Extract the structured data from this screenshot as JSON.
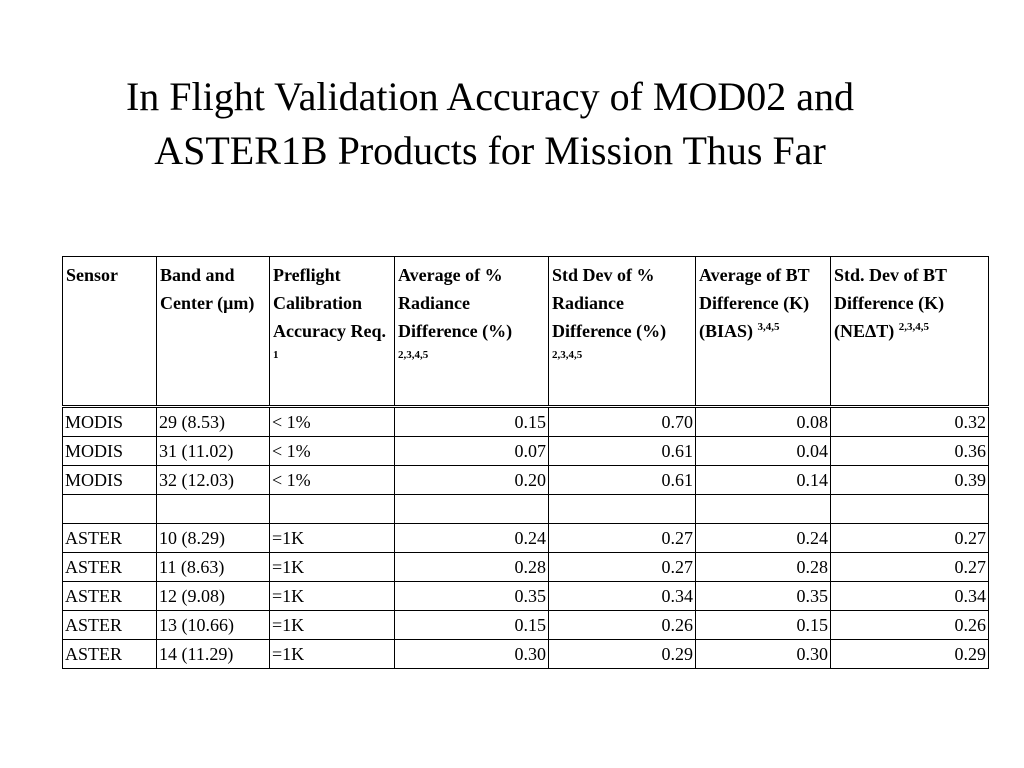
{
  "slide": {
    "title": "In Flight Validation Accuracy of MOD02 and ASTER1B Products for Mission Thus Far"
  },
  "table": {
    "headers": [
      {
        "text": "Sensor",
        "sup": ""
      },
      {
        "text": "Band and Center (μm)",
        "sup": ""
      },
      {
        "text": "Preflight Calibration Accuracy Req.",
        "sup": "1"
      },
      {
        "text": "Average of % Radiance Difference (%)",
        "sup": "2,3,4,5"
      },
      {
        "text": "Std Dev of % Radiance Difference (%)",
        "sup": "2,3,4,5"
      },
      {
        "text": "Average of BT Difference (K)  (BIAS)",
        "sup": "3,4,5"
      },
      {
        "text": "Std. Dev of BT Difference (K) (NEΔT)",
        "sup": "2,3,4,5"
      }
    ],
    "rows": [
      [
        "MODIS",
        "29 (8.53)",
        "< 1%",
        "0.15",
        "0.70",
        "0.08",
        "0.32"
      ],
      [
        "MODIS",
        "31 (11.02)",
        "< 1%",
        "0.07",
        "0.61",
        "0.04",
        "0.36"
      ],
      [
        "MODIS",
        "32 (12.03)",
        "< 1%",
        "0.20",
        "0.61",
        "0.14",
        "0.39"
      ],
      [
        "",
        "",
        "",
        "",
        "",
        "",
        ""
      ],
      [
        "ASTER",
        "10 (8.29)",
        "=1K",
        "0.24",
        "0.27",
        "0.24",
        "0.27"
      ],
      [
        "ASTER",
        "11 (8.63)",
        "=1K",
        "0.28",
        "0.27",
        "0.28",
        "0.27"
      ],
      [
        "ASTER",
        "12 (9.08)",
        "=1K",
        "0.35",
        "0.34",
        "0.35",
        "0.34"
      ],
      [
        "ASTER",
        "13 (10.66)",
        "=1K",
        "0.15",
        "0.26",
        "0.15",
        "0.26"
      ],
      [
        "ASTER",
        "14 (11.29)",
        "=1K",
        "0.30",
        "0.29",
        "0.30",
        "0.29"
      ]
    ]
  }
}
